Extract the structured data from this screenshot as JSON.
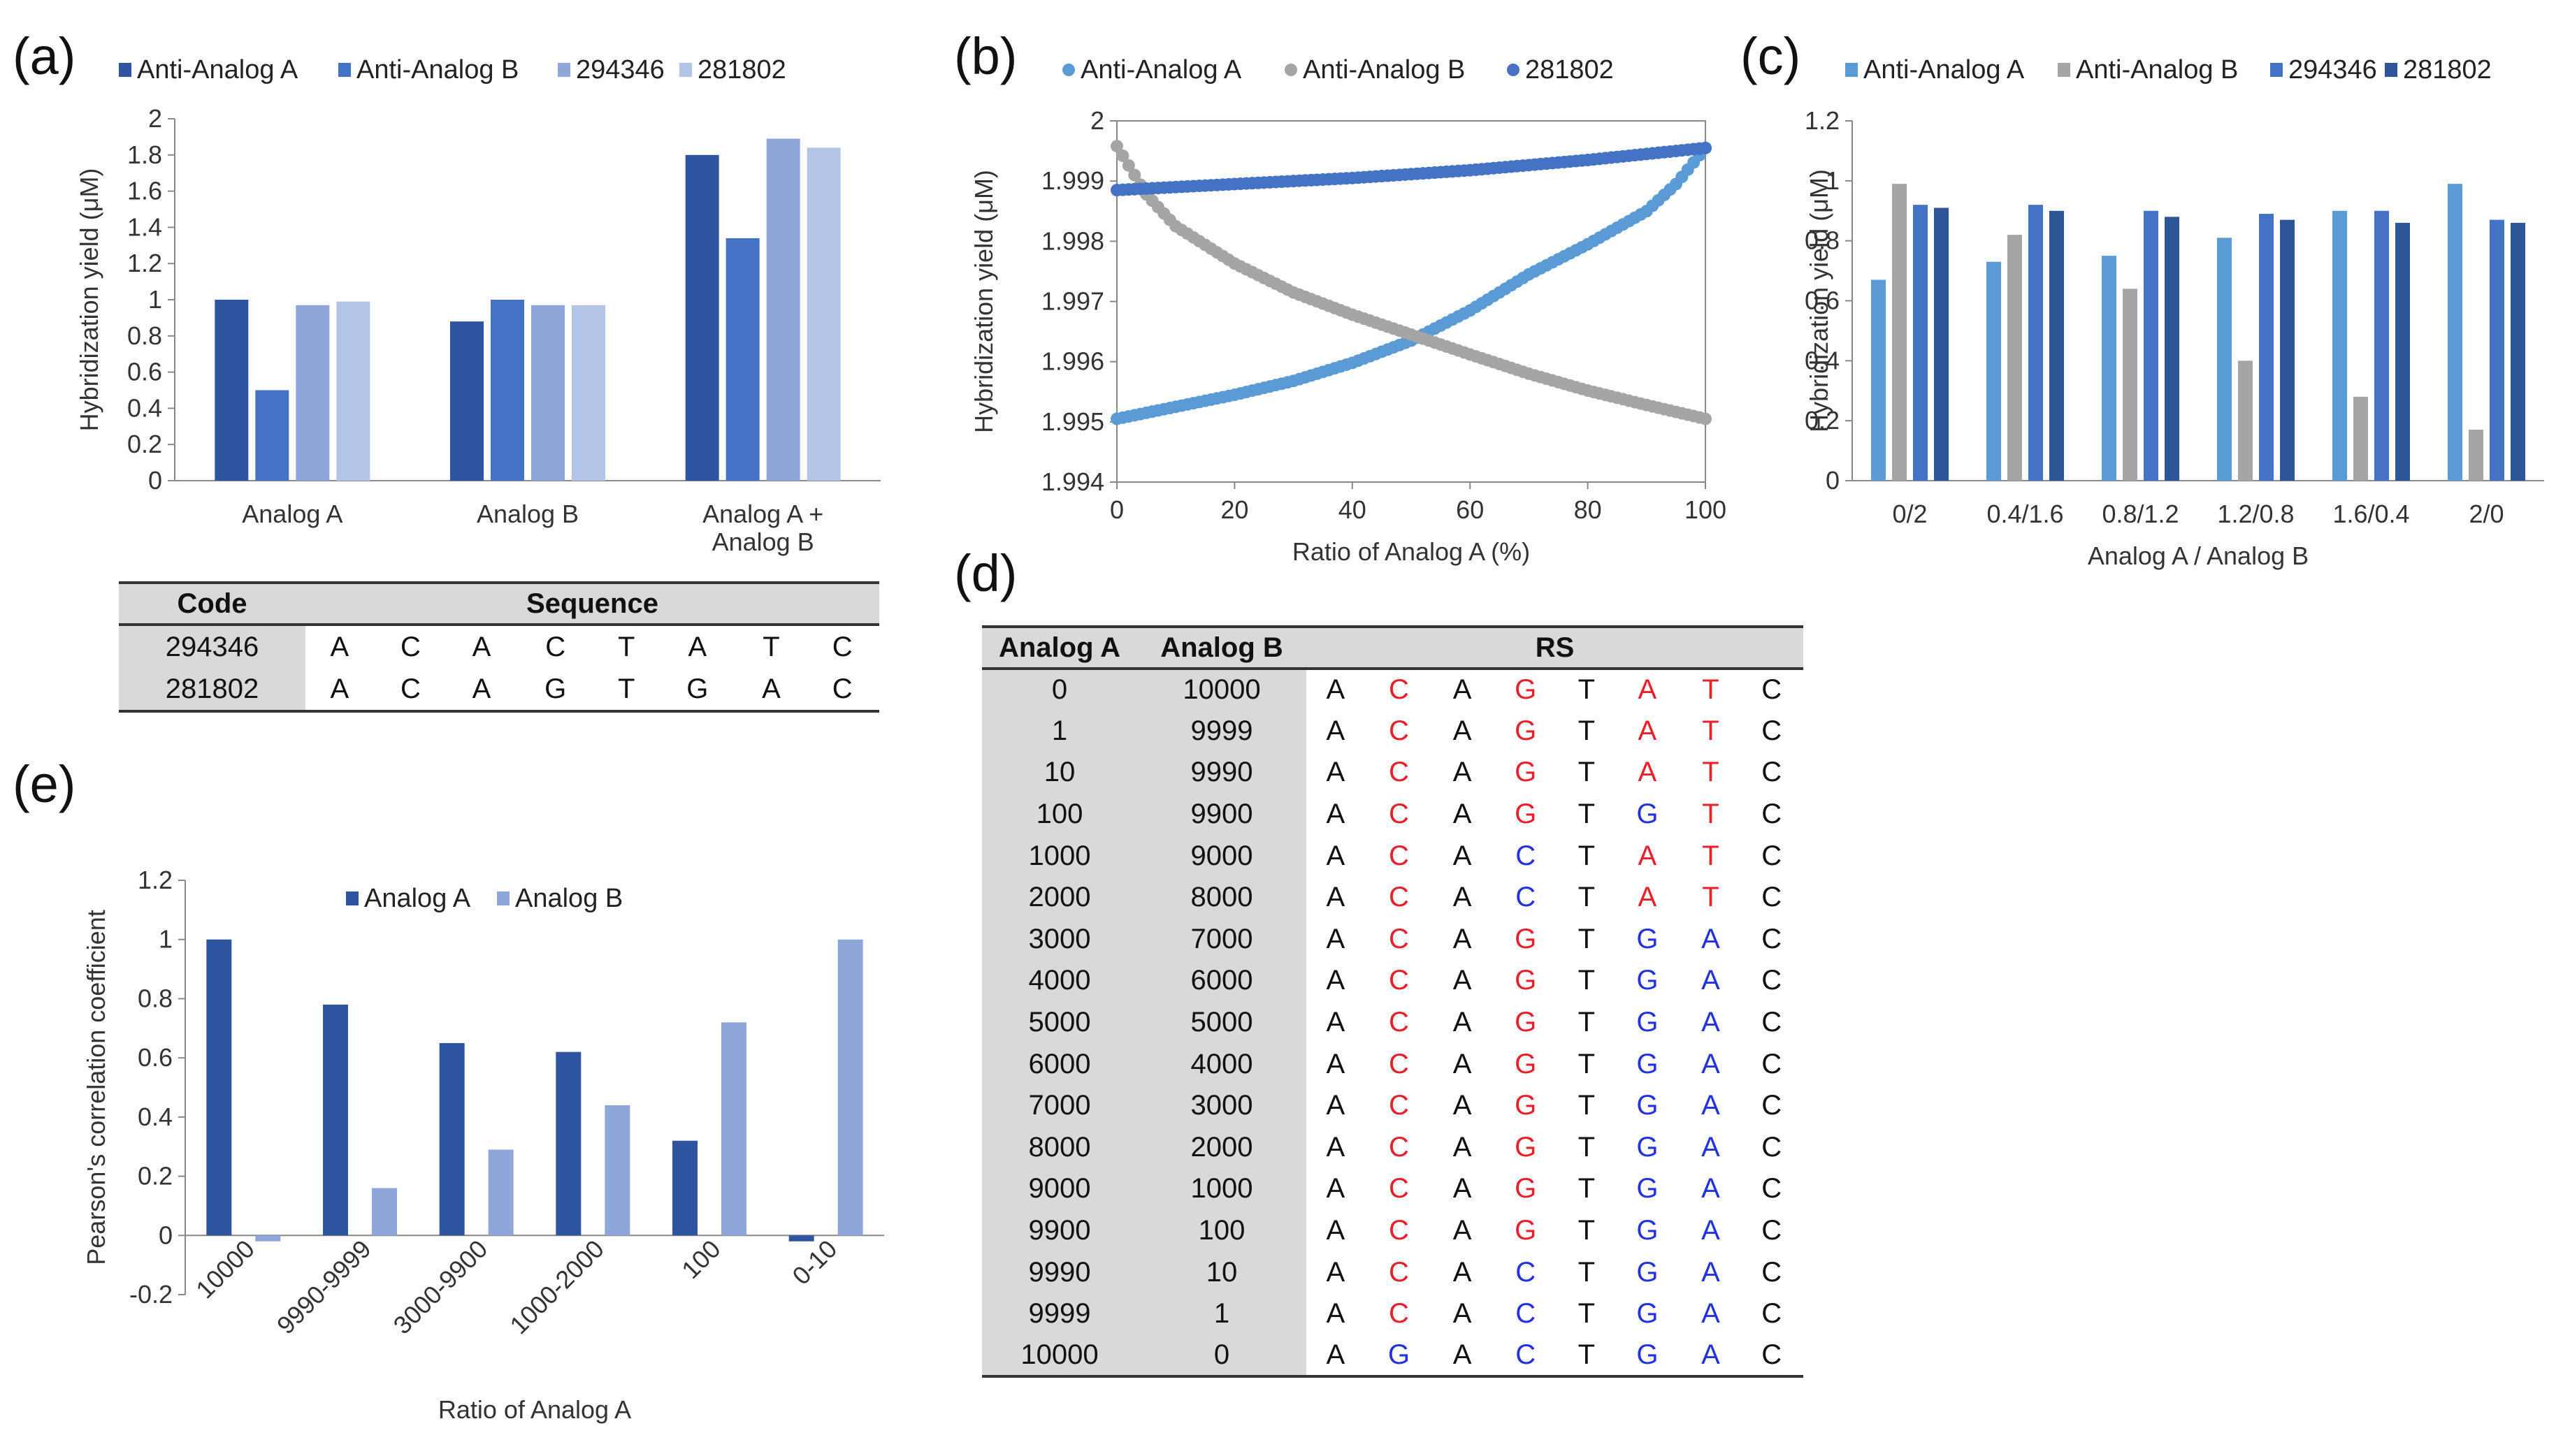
{
  "panels": {
    "a": "(a)",
    "b": "(b)",
    "c": "(c)",
    "d": "(d)",
    "e": "(e)"
  },
  "colors": {
    "navy": "#2f55a1",
    "mid": "#4472c4",
    "light1": "#8ea7d8",
    "light2": "#b4c4e6",
    "cyan": "#5b9bd5",
    "gray": "#a5a5a5",
    "royal": "#4472c4",
    "dark": "#2e5597",
    "red_base": "#e8202a",
    "blue_base": "#2233dd"
  },
  "chart_data": [
    {
      "id": "a",
      "type": "bar",
      "categories": [
        "Analog A",
        "Analog B",
        "Analog A +\nAnalog B"
      ],
      "series": [
        {
          "name": "Anti-Analog A",
          "values": [
            1.0,
            0.88,
            1.8
          ]
        },
        {
          "name": "Anti-Analog B",
          "values": [
            0.5,
            1.0,
            1.34
          ]
        },
        {
          "name": "294346",
          "values": [
            0.97,
            0.97,
            1.89
          ]
        },
        {
          "name": "281802",
          "values": [
            0.99,
            0.97,
            1.84
          ]
        }
      ],
      "title": "",
      "xlabel": "",
      "ylabel": "Hybridization yield (μM)",
      "ylim": [
        0,
        2
      ],
      "yticks": [
        "0",
        "0.2",
        "0.4",
        "0.6",
        "0.8",
        "1",
        "1.2",
        "1.4",
        "1.6",
        "1.8",
        "2"
      ],
      "legend_position": "top"
    },
    {
      "id": "b",
      "type": "scatter",
      "series": [
        {
          "name": "Anti-Analog A",
          "curve": [
            [
              0,
              1.99505
            ],
            [
              10,
              1.99525
            ],
            [
              20,
              1.99545
            ],
            [
              30,
              1.99568
            ],
            [
              40,
              1.99598
            ],
            [
              50,
              1.99635
            ],
            [
              60,
              1.99685
            ],
            [
              70,
              1.99745
            ],
            [
              80,
              1.99795
            ],
            [
              90,
              1.9985
            ],
            [
              95,
              1.99895
            ],
            [
              100,
              1.99955
            ]
          ]
        },
        {
          "name": "Anti-Analog B",
          "curve": [
            [
              0,
              1.99958
            ],
            [
              5,
              1.99878
            ],
            [
              10,
              1.99825
            ],
            [
              20,
              1.99763
            ],
            [
              30,
              1.99715
            ],
            [
              40,
              1.99678
            ],
            [
              50,
              1.99645
            ],
            [
              60,
              1.99612
            ],
            [
              70,
              1.9958
            ],
            [
              80,
              1.99552
            ],
            [
              90,
              1.99528
            ],
            [
              100,
              1.99505
            ]
          ]
        },
        {
          "name": "281802",
          "curve": [
            [
              0,
              1.99885
            ],
            [
              20,
              1.99895
            ],
            [
              40,
              1.99905
            ],
            [
              60,
              1.99918
            ],
            [
              80,
              1.99935
            ],
            [
              100,
              1.99955
            ]
          ]
        }
      ],
      "title": "",
      "xlabel": "Ratio of Analog A (%)",
      "ylabel": "Hybridization yield (μM)",
      "xlim": [
        0,
        100
      ],
      "ylim": [
        1.994,
        2.0
      ],
      "xticks": [
        "0",
        "20",
        "40",
        "60",
        "80",
        "100"
      ],
      "yticks": [
        "1.994",
        "1.995",
        "1.996",
        "1.997",
        "1.998",
        "1.999",
        "2"
      ],
      "legend_position": "top"
    },
    {
      "id": "c",
      "type": "bar",
      "categories": [
        "0/2",
        "0.4/1.6",
        "0.8/1.2",
        "1.2/0.8",
        "1.6/0.4",
        "2/0"
      ],
      "series": [
        {
          "name": "Anti-Analog A",
          "values": [
            0.67,
            0.73,
            0.75,
            0.81,
            0.9,
            0.99
          ]
        },
        {
          "name": "Anti-Analog B",
          "values": [
            0.99,
            0.82,
            0.64,
            0.4,
            0.28,
            0.17
          ]
        },
        {
          "name": "294346",
          "values": [
            0.92,
            0.92,
            0.9,
            0.89,
            0.9,
            0.87
          ]
        },
        {
          "name": "281802",
          "values": [
            0.91,
            0.9,
            0.88,
            0.87,
            0.86,
            0.86
          ]
        }
      ],
      "title": "",
      "xlabel": "Analog A / Analog B",
      "ylabel": "Hybridization yield (μM)",
      "ylim": [
        0,
        1.2
      ],
      "yticks": [
        "0",
        "0.2",
        "0.4",
        "0.6",
        "0.8",
        "1",
        "1.2"
      ],
      "legend_position": "top"
    },
    {
      "id": "e",
      "type": "bar",
      "categories": [
        "10000",
        "9990-9999",
        "3000-9900",
        "1000-2000",
        "100",
        "0-10"
      ],
      "series": [
        {
          "name": "Analog A",
          "values": [
            1.0,
            0.78,
            0.65,
            0.62,
            0.32,
            -0.02
          ]
        },
        {
          "name": "Analog B",
          "values": [
            -0.02,
            0.16,
            0.29,
            0.44,
            0.72,
            1.0
          ]
        }
      ],
      "title": "",
      "xlabel": "Ratio of Analog A",
      "ylabel": "Pearson's correlation coefficient",
      "ylim": [
        -0.2,
        1.2
      ],
      "yticks": [
        "-0.2",
        "0",
        "0.2",
        "0.4",
        "0.6",
        "0.8",
        "1",
        "1.2"
      ],
      "legend_position": "top"
    }
  ],
  "seq_table": {
    "headers": [
      "Code",
      "Sequence"
    ],
    "rows": [
      {
        "code": "294346",
        "seq": [
          "A",
          "C",
          "A",
          "C",
          "T",
          "A",
          "T",
          "C"
        ]
      },
      {
        "code": "281802",
        "seq": [
          "A",
          "C",
          "A",
          "G",
          "T",
          "G",
          "A",
          "C"
        ]
      }
    ]
  },
  "rs_table": {
    "headers": [
      "Analog A",
      "Analog B",
      "RS"
    ],
    "rows": [
      {
        "a": "0",
        "b": "10000",
        "seq": [
          "A",
          "C",
          "A",
          "G",
          "T",
          "A",
          "T",
          "C"
        ],
        "col": [
          "k",
          "r",
          "k",
          "r",
          "k",
          "r",
          "r",
          "k"
        ]
      },
      {
        "a": "1",
        "b": "9999",
        "seq": [
          "A",
          "C",
          "A",
          "G",
          "T",
          "A",
          "T",
          "C"
        ],
        "col": [
          "k",
          "r",
          "k",
          "r",
          "k",
          "r",
          "r",
          "k"
        ]
      },
      {
        "a": "10",
        "b": "9990",
        "seq": [
          "A",
          "C",
          "A",
          "G",
          "T",
          "A",
          "T",
          "C"
        ],
        "col": [
          "k",
          "r",
          "k",
          "r",
          "k",
          "r",
          "r",
          "k"
        ]
      },
      {
        "a": "100",
        "b": "9900",
        "seq": [
          "A",
          "C",
          "A",
          "G",
          "T",
          "G",
          "T",
          "C"
        ],
        "col": [
          "k",
          "r",
          "k",
          "r",
          "k",
          "b",
          "r",
          "k"
        ]
      },
      {
        "a": "1000",
        "b": "9000",
        "seq": [
          "A",
          "C",
          "A",
          "C",
          "T",
          "A",
          "T",
          "C"
        ],
        "col": [
          "k",
          "r",
          "k",
          "b",
          "k",
          "r",
          "r",
          "k"
        ]
      },
      {
        "a": "2000",
        "b": "8000",
        "seq": [
          "A",
          "C",
          "A",
          "C",
          "T",
          "A",
          "T",
          "C"
        ],
        "col": [
          "k",
          "r",
          "k",
          "b",
          "k",
          "r",
          "r",
          "k"
        ]
      },
      {
        "a": "3000",
        "b": "7000",
        "seq": [
          "A",
          "C",
          "A",
          "G",
          "T",
          "G",
          "A",
          "C"
        ],
        "col": [
          "k",
          "r",
          "k",
          "r",
          "k",
          "b",
          "b",
          "k"
        ]
      },
      {
        "a": "4000",
        "b": "6000",
        "seq": [
          "A",
          "C",
          "A",
          "G",
          "T",
          "G",
          "A",
          "C"
        ],
        "col": [
          "k",
          "r",
          "k",
          "r",
          "k",
          "b",
          "b",
          "k"
        ]
      },
      {
        "a": "5000",
        "b": "5000",
        "seq": [
          "A",
          "C",
          "A",
          "G",
          "T",
          "G",
          "A",
          "C"
        ],
        "col": [
          "k",
          "r",
          "k",
          "r",
          "k",
          "b",
          "b",
          "k"
        ]
      },
      {
        "a": "6000",
        "b": "4000",
        "seq": [
          "A",
          "C",
          "A",
          "G",
          "T",
          "G",
          "A",
          "C"
        ],
        "col": [
          "k",
          "r",
          "k",
          "r",
          "k",
          "b",
          "b",
          "k"
        ]
      },
      {
        "a": "7000",
        "b": "3000",
        "seq": [
          "A",
          "C",
          "A",
          "G",
          "T",
          "G",
          "A",
          "C"
        ],
        "col": [
          "k",
          "r",
          "k",
          "r",
          "k",
          "b",
          "b",
          "k"
        ]
      },
      {
        "a": "8000",
        "b": "2000",
        "seq": [
          "A",
          "C",
          "A",
          "G",
          "T",
          "G",
          "A",
          "C"
        ],
        "col": [
          "k",
          "r",
          "k",
          "r",
          "k",
          "b",
          "b",
          "k"
        ]
      },
      {
        "a": "9000",
        "b": "1000",
        "seq": [
          "A",
          "C",
          "A",
          "G",
          "T",
          "G",
          "A",
          "C"
        ],
        "col": [
          "k",
          "r",
          "k",
          "r",
          "k",
          "b",
          "b",
          "k"
        ]
      },
      {
        "a": "9900",
        "b": "100",
        "seq": [
          "A",
          "C",
          "A",
          "G",
          "T",
          "G",
          "A",
          "C"
        ],
        "col": [
          "k",
          "r",
          "k",
          "r",
          "k",
          "b",
          "b",
          "k"
        ]
      },
      {
        "a": "9990",
        "b": "10",
        "seq": [
          "A",
          "C",
          "A",
          "C",
          "T",
          "G",
          "A",
          "C"
        ],
        "col": [
          "k",
          "r",
          "k",
          "b",
          "k",
          "b",
          "b",
          "k"
        ]
      },
      {
        "a": "9999",
        "b": "1",
        "seq": [
          "A",
          "C",
          "A",
          "C",
          "T",
          "G",
          "A",
          "C"
        ],
        "col": [
          "k",
          "r",
          "k",
          "b",
          "k",
          "b",
          "b",
          "k"
        ]
      },
      {
        "a": "10000",
        "b": "0",
        "seq": [
          "A",
          "G",
          "A",
          "C",
          "T",
          "G",
          "A",
          "C"
        ],
        "col": [
          "k",
          "b",
          "k",
          "b",
          "k",
          "b",
          "b",
          "k"
        ]
      }
    ]
  }
}
